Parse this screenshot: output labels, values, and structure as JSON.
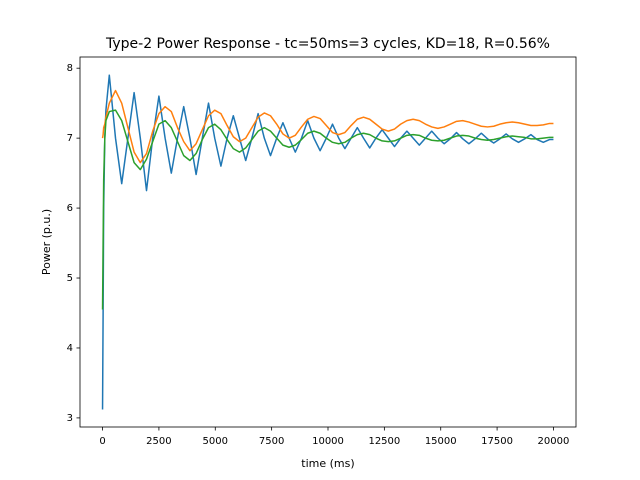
{
  "chart_data": {
    "type": "line",
    "title": "Type-2 Power Response - tc=50ms=3 cycles, KD=18, R=0.56%",
    "x_label": "time (ms)",
    "y_label": "Power (p.u.)",
    "x": [
      0,
      25,
      50,
      100,
      150,
      300,
      575,
      850,
      1125,
      1400,
      1675,
      1950,
      2225,
      2500,
      2775,
      3050,
      3325,
      3600,
      3875,
      4150,
      4425,
      4700,
      4975,
      5250,
      5525,
      5800,
      6075,
      6350,
      6625,
      6900,
      7175,
      7450,
      7725,
      8000,
      8275,
      8550,
      8825,
      9100,
      9375,
      9650,
      9925,
      10200,
      10475,
      10750,
      11025,
      11300,
      11575,
      11850,
      12125,
      12400,
      12675,
      12950,
      13225,
      13500,
      13775,
      14050,
      14325,
      14600,
      14875,
      15150,
      15425,
      15700,
      15975,
      16250,
      16525,
      16800,
      17075,
      17350,
      17625,
      17900,
      18175,
      18450,
      18725,
      19000,
      19275,
      19550,
      19825,
      20000
    ],
    "series": [
      {
        "color": "#1f77b4",
        "values": [
          3.12,
          4.5,
          6.0,
          7.0,
          7.4,
          7.9,
          7.0,
          6.35,
          7.0,
          7.65,
          7.0,
          6.25,
          7.0,
          7.6,
          7.0,
          6.5,
          7.0,
          7.45,
          7.0,
          6.48,
          7.0,
          7.5,
          7.0,
          6.6,
          7.0,
          7.32,
          7.0,
          6.68,
          7.0,
          7.35,
          7.0,
          6.75,
          7.0,
          7.22,
          7.0,
          6.8,
          7.0,
          7.25,
          7.0,
          6.82,
          7.0,
          7.2,
          7.0,
          6.85,
          7.0,
          7.15,
          7.0,
          6.86,
          7.0,
          7.12,
          7.0,
          6.88,
          7.0,
          7.1,
          7.0,
          6.9,
          7.0,
          7.1,
          7.0,
          6.92,
          6.99,
          7.08,
          6.99,
          6.92,
          6.99,
          7.07,
          6.99,
          6.93,
          6.99,
          7.06,
          6.99,
          6.94,
          6.99,
          7.05,
          6.98,
          6.94,
          6.98,
          6.98
        ]
      },
      {
        "color": "#ff7f0e",
        "values": [
          7.0,
          7.05,
          7.15,
          7.2,
          7.3,
          7.5,
          7.68,
          7.5,
          7.15,
          6.8,
          6.65,
          6.78,
          7.1,
          7.35,
          7.45,
          7.38,
          7.15,
          6.95,
          6.82,
          6.92,
          7.12,
          7.32,
          7.4,
          7.35,
          7.18,
          7.02,
          6.95,
          7.0,
          7.15,
          7.3,
          7.36,
          7.32,
          7.2,
          7.06,
          7.0,
          7.04,
          7.16,
          7.27,
          7.31,
          7.28,
          7.18,
          7.08,
          7.05,
          7.08,
          7.18,
          7.27,
          7.3,
          7.27,
          7.2,
          7.13,
          7.1,
          7.13,
          7.2,
          7.25,
          7.27,
          7.25,
          7.2,
          7.16,
          7.14,
          7.16,
          7.2,
          7.24,
          7.25,
          7.23,
          7.2,
          7.17,
          7.16,
          7.17,
          7.2,
          7.22,
          7.23,
          7.22,
          7.2,
          7.18,
          7.18,
          7.19,
          7.21,
          7.21
        ]
      },
      {
        "color": "#2ca02c",
        "values": [
          4.55,
          5.5,
          6.4,
          7.0,
          7.25,
          7.38,
          7.4,
          7.25,
          6.95,
          6.65,
          6.55,
          6.7,
          6.95,
          7.2,
          7.25,
          7.15,
          6.95,
          6.75,
          6.68,
          6.78,
          6.98,
          7.15,
          7.2,
          7.12,
          6.98,
          6.85,
          6.8,
          6.86,
          6.98,
          7.1,
          7.15,
          7.1,
          7.0,
          6.9,
          6.87,
          6.9,
          6.98,
          7.07,
          7.1,
          7.07,
          7.0,
          6.94,
          6.92,
          6.94,
          7.0,
          7.05,
          7.07,
          7.05,
          7.0,
          6.96,
          6.95,
          6.96,
          7.0,
          7.04,
          7.05,
          7.04,
          7.0,
          6.97,
          6.96,
          6.97,
          7.0,
          7.03,
          7.04,
          7.03,
          7.0,
          6.98,
          6.97,
          6.98,
          7.0,
          7.02,
          7.03,
          7.02,
          7.01,
          6.99,
          6.99,
          7.0,
          7.01,
          7.01
        ]
      }
    ],
    "xlim": [
      -1000,
      21000
    ],
    "xticks": [
      0,
      2500,
      5000,
      7500,
      10000,
      12500,
      15000,
      17500,
      20000
    ],
    "ylim": [
      2.87,
      8.16
    ],
    "yticks": [
      3,
      4,
      5,
      6,
      7,
      8
    ],
    "grid": false
  }
}
